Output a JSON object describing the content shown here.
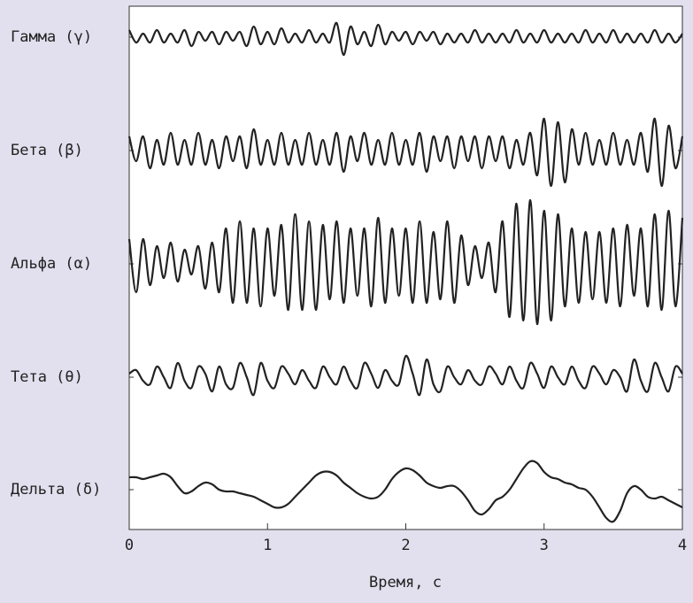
{
  "chart_data": {
    "type": "line",
    "xlabel": "Время, с",
    "xlim": [
      0,
      4
    ],
    "xticks": [
      0,
      1,
      2,
      3,
      4
    ],
    "x": [
      0,
      0.05,
      0.1,
      0.15,
      0.2,
      0.25,
      0.3,
      0.35,
      0.4,
      0.45,
      0.5,
      0.55,
      0.6,
      0.65,
      0.7,
      0.75,
      0.8,
      0.85,
      0.9,
      0.95,
      1,
      1.05,
      1.1,
      1.15,
      1.2,
      1.25,
      1.3,
      1.35,
      1.4,
      1.45,
      1.5,
      1.55,
      1.6,
      1.65,
      1.7,
      1.75,
      1.8,
      1.85,
      1.9,
      1.95,
      2,
      2.05,
      2.1,
      2.15,
      2.2,
      2.25,
      2.3,
      2.35,
      2.4,
      2.45,
      2.5,
      2.55,
      2.6,
      2.65,
      2.7,
      2.75,
      2.8,
      2.85,
      2.9,
      2.95,
      3,
      3.05,
      3.1,
      3.15,
      3.2,
      3.25,
      3.3,
      3.35,
      3.4,
      3.45,
      3.5,
      3.55,
      3.6,
      3.65,
      3.7,
      3.75,
      3.8,
      3.85,
      3.9,
      3.95,
      4
    ],
    "series": [
      {
        "name": "Гамма (γ)",
        "color": "#222222",
        "values": [
          0.2,
          -0.15,
          0.1,
          -0.15,
          0.2,
          -0.15,
          0.1,
          -0.15,
          0.2,
          -0.25,
          0.15,
          -0.1,
          0.15,
          -0.2,
          0.15,
          -0.1,
          0.15,
          -0.25,
          0.3,
          -0.2,
          0.15,
          -0.2,
          0.25,
          -0.15,
          0.1,
          -0.15,
          0.2,
          -0.15,
          0.1,
          -0.15,
          0.4,
          -0.5,
          0.3,
          -0.2,
          0.15,
          -0.25,
          0.35,
          -0.2,
          0.15,
          -0.1,
          0.15,
          -0.2,
          0.15,
          -0.1,
          0.15,
          -0.2,
          0.1,
          -0.15,
          0.1,
          -0.15,
          0.2,
          -0.15,
          0.1,
          -0.15,
          0.1,
          -0.15,
          0.2,
          -0.15,
          0.1,
          -0.15,
          0.2,
          -0.15,
          0.1,
          -0.15,
          0.1,
          -0.15,
          0.2,
          -0.15,
          0.1,
          -0.15,
          0.2,
          -0.15,
          0.1,
          -0.15,
          0.1,
          -0.15,
          0.2,
          -0.15,
          0.1,
          -0.15,
          0.1
        ]
      },
      {
        "name": "Бета (β)",
        "color": "#222222",
        "values": [
          0.4,
          -0.3,
          0.4,
          -0.5,
          0.3,
          -0.4,
          0.5,
          -0.4,
          0.3,
          -0.4,
          0.5,
          -0.4,
          0.3,
          -0.5,
          0.4,
          -0.3,
          0.4,
          -0.5,
          0.6,
          -0.4,
          0.3,
          -0.4,
          0.5,
          -0.4,
          0.3,
          -0.4,
          0.5,
          -0.4,
          0.3,
          -0.4,
          0.5,
          -0.6,
          0.4,
          -0.3,
          0.5,
          -0.4,
          0.3,
          -0.4,
          0.5,
          -0.4,
          0.3,
          -0.4,
          0.5,
          -0.6,
          0.4,
          -0.3,
          0.4,
          -0.5,
          0.4,
          -0.3,
          0.4,
          -0.5,
          0.4,
          -0.3,
          0.4,
          -0.5,
          0.3,
          -0.4,
          0.5,
          -0.7,
          0.9,
          -1.0,
          0.8,
          -0.9,
          0.6,
          -0.4,
          0.5,
          -0.4,
          0.3,
          -0.4,
          0.5,
          -0.4,
          0.3,
          -0.4,
          0.5,
          -0.6,
          0.9,
          -1.0,
          0.7,
          -0.5,
          0.4
        ]
      },
      {
        "name": "Альфа (α)",
        "color": "#222222",
        "values": [
          0.7,
          -0.8,
          0.7,
          -0.6,
          0.5,
          -0.4,
          0.6,
          -0.5,
          0.4,
          -0.3,
          0.5,
          -0.7,
          0.6,
          -0.8,
          1.0,
          -1.1,
          1.2,
          -1.1,
          1.0,
          -1.2,
          1.0,
          -0.9,
          1.1,
          -1.3,
          1.4,
          -1.3,
          1.2,
          -1.3,
          1.1,
          -1.0,
          1.2,
          -1.1,
          1.0,
          -0.9,
          1.0,
          -1.2,
          1.3,
          -1.1,
          1.0,
          -0.9,
          1.0,
          -1.1,
          1.2,
          -1.1,
          0.9,
          -1.0,
          1.2,
          -1.1,
          0.8,
          -0.6,
          0.5,
          -0.4,
          0.6,
          -0.8,
          1.2,
          -1.5,
          1.7,
          -1.6,
          1.8,
          -1.7,
          1.5,
          -1.6,
          1.4,
          -1.2,
          1.0,
          -1.1,
          0.9,
          -1.0,
          0.9,
          -1.1,
          1.0,
          -1.2,
          1.1,
          -0.9,
          1.0,
          -1.2,
          1.4,
          -1.3,
          1.5,
          -1.2,
          1.3
        ]
      },
      {
        "name": "Тета (θ)",
        "color": "#222222",
        "values": [
          0.1,
          0.2,
          -0.1,
          -0.2,
          0.3,
          0.0,
          -0.3,
          0.4,
          -0.1,
          -0.3,
          0.3,
          0.1,
          -0.4,
          0.3,
          -0.2,
          -0.3,
          0.4,
          0.0,
          -0.5,
          0.4,
          -0.1,
          -0.3,
          0.3,
          0.1,
          -0.2,
          0.2,
          -0.1,
          -0.3,
          0.3,
          0.0,
          -0.2,
          0.3,
          -0.1,
          -0.3,
          0.4,
          0.1,
          -0.3,
          0.2,
          -0.1,
          -0.2,
          0.6,
          0.1,
          -0.5,
          0.5,
          -0.2,
          -0.4,
          0.3,
          0.0,
          -0.2,
          0.2,
          -0.1,
          -0.2,
          0.3,
          0.1,
          -0.2,
          0.3,
          -0.1,
          -0.3,
          0.4,
          0.1,
          -0.3,
          0.3,
          0.0,
          -0.2,
          0.3,
          -0.1,
          -0.3,
          0.3,
          0.1,
          -0.2,
          0.2,
          0.0,
          -0.4,
          0.5,
          -0.1,
          -0.4,
          0.4,
          0.0,
          -0.4,
          0.3,
          0.1
        ]
      },
      {
        "name": "Дельта (δ)",
        "color": "#222222",
        "values": [
          0.35,
          0.35,
          0.3,
          0.35,
          0.4,
          0.45,
          0.35,
          0.1,
          -0.1,
          -0.05,
          0.1,
          0.2,
          0.15,
          0.0,
          -0.05,
          -0.05,
          -0.1,
          -0.15,
          -0.2,
          -0.3,
          -0.4,
          -0.5,
          -0.5,
          -0.4,
          -0.2,
          0.0,
          0.2,
          0.4,
          0.5,
          0.5,
          0.4,
          0.2,
          0.05,
          -0.1,
          -0.2,
          -0.25,
          -0.2,
          0.0,
          0.3,
          0.5,
          0.6,
          0.55,
          0.4,
          0.2,
          0.1,
          0.05,
          0.1,
          0.1,
          -0.05,
          -0.3,
          -0.6,
          -0.7,
          -0.55,
          -0.3,
          -0.2,
          0.0,
          0.3,
          0.6,
          0.8,
          0.75,
          0.5,
          0.35,
          0.3,
          0.2,
          0.15,
          0.05,
          0.0,
          -0.2,
          -0.5,
          -0.8,
          -0.9,
          -0.6,
          -0.1,
          0.1,
          0.0,
          -0.2,
          -0.25,
          -0.2,
          -0.3,
          -0.4,
          -0.5
        ]
      }
    ]
  }
}
